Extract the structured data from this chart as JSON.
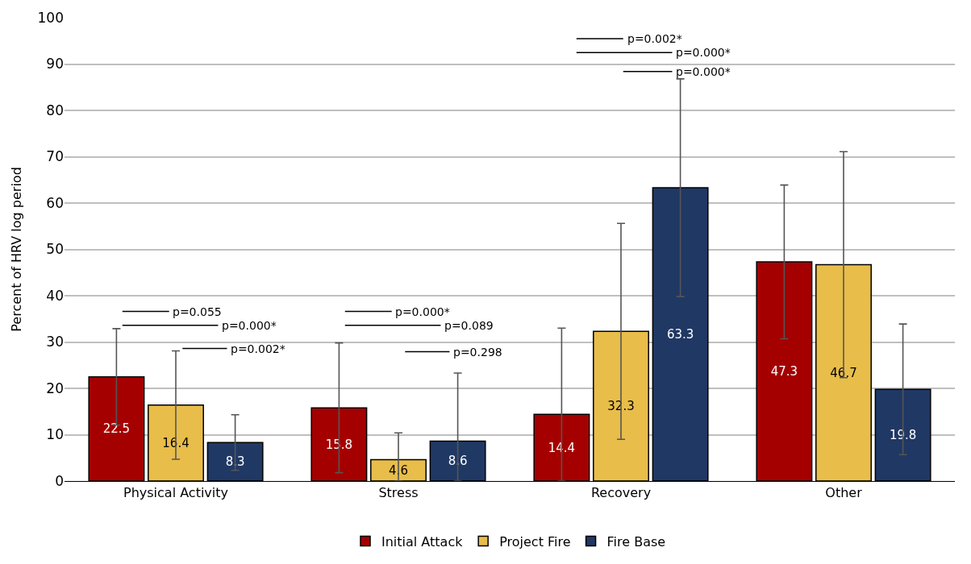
{
  "chart_data": {
    "type": "bar",
    "ylabel": "Percent of HRV log period",
    "categories": [
      "Physical Activity",
      "Stress",
      "Recovery",
      "Other"
    ],
    "series": [
      {
        "name": "Initial Attack",
        "color": "#a50000",
        "values": [
          22.5,
          15.8,
          14.4,
          47.3
        ],
        "errors": [
          10.4,
          14.0,
          [
            0,
            33.0
          ],
          16.6
        ]
      },
      {
        "name": "Project Fire",
        "color": "#e8bd4a",
        "values": [
          16.4,
          4.6,
          32.3,
          46.7
        ],
        "errors": [
          11.7,
          [
            0,
            10.4
          ],
          23.3,
          24.4
        ]
      },
      {
        "name": "Fire Base",
        "color": "#203864",
        "values": [
          8.3,
          8.6,
          63.3,
          19.8
        ],
        "errors": [
          6.0,
          [
            0,
            23.3
          ],
          23.5,
          14.1
        ]
      }
    ],
    "ylim": [
      0,
      100
    ],
    "yticks": [
      0,
      10,
      20,
      30,
      40,
      50,
      60,
      70,
      80,
      90,
      100
    ],
    "grid": "y",
    "legend": "bottom",
    "data_labels": true,
    "annotations": [
      "p=0.055",
      "p=0.000*",
      "p=0.002*",
      "p=0.000*",
      "p=0.089",
      "p=0.298",
      "p=0.002*",
      "p=0.000*",
      "p=0.000*"
    ]
  }
}
